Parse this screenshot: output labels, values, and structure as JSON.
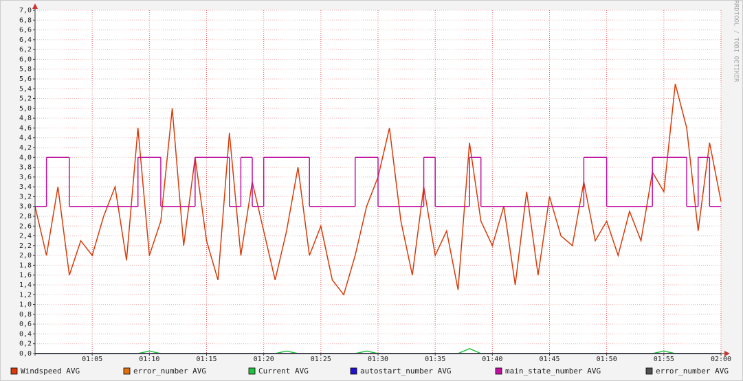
{
  "chart_data": {
    "type": "line",
    "watermark": "RRDTOOL / TOBI OETIKER",
    "grid": true,
    "xlim": [
      60,
      120
    ],
    "xticks": [
      {
        "value": 65,
        "label": "01:05"
      },
      {
        "value": 70,
        "label": "01:10"
      },
      {
        "value": 75,
        "label": "01:15"
      },
      {
        "value": 80,
        "label": "01:20"
      },
      {
        "value": 85,
        "label": "01:25"
      },
      {
        "value": 90,
        "label": "01:30"
      },
      {
        "value": 95,
        "label": "01:35"
      },
      {
        "value": 100,
        "label": "01:40"
      },
      {
        "value": 105,
        "label": "01:45"
      },
      {
        "value": 110,
        "label": "01:50"
      },
      {
        "value": 115,
        "label": "01:55"
      },
      {
        "value": 120,
        "label": "02:00"
      }
    ],
    "ylim": [
      0,
      7
    ],
    "yticks": [
      {
        "value": 0,
        "label": "0,0"
      },
      {
        "value": 0.2,
        "label": "0,2"
      },
      {
        "value": 0.4,
        "label": "0,4"
      },
      {
        "value": 0.6,
        "label": "0,6"
      },
      {
        "value": 0.8,
        "label": "0,8"
      },
      {
        "value": 1,
        "label": "1,0"
      },
      {
        "value": 1.2,
        "label": "1,2"
      },
      {
        "value": 1.4,
        "label": "1,4"
      },
      {
        "value": 1.6,
        "label": "1,6"
      },
      {
        "value": 1.8,
        "label": "1,8"
      },
      {
        "value": 2,
        "label": "2,0"
      },
      {
        "value": 2.2,
        "label": "2,2"
      },
      {
        "value": 2.4,
        "label": "2,4"
      },
      {
        "value": 2.6,
        "label": "2,6"
      },
      {
        "value": 2.8,
        "label": "2,8"
      },
      {
        "value": 3,
        "label": "3,0"
      },
      {
        "value": 3.2,
        "label": "3,2"
      },
      {
        "value": 3.4,
        "label": "3,4"
      },
      {
        "value": 3.6,
        "label": "3,6"
      },
      {
        "value": 3.8,
        "label": "3,8"
      },
      {
        "value": 4,
        "label": "4,0"
      },
      {
        "value": 4.2,
        "label": "4,2"
      },
      {
        "value": 4.4,
        "label": "4,4"
      },
      {
        "value": 4.6,
        "label": "4,6"
      },
      {
        "value": 4.8,
        "label": "4,8"
      },
      {
        "value": 5,
        "label": "5,0"
      },
      {
        "value": 5.2,
        "label": "5,2"
      },
      {
        "value": 5.4,
        "label": "5,4"
      },
      {
        "value": 5.6,
        "label": "5,6"
      },
      {
        "value": 5.8,
        "label": "5,8"
      },
      {
        "value": 6,
        "label": "6,0"
      },
      {
        "value": 6.2,
        "label": "6,2"
      },
      {
        "value": 6.4,
        "label": "6,4"
      },
      {
        "value": 6.6,
        "label": "6,6"
      },
      {
        "value": 6.8,
        "label": "6,8"
      },
      {
        "value": 7,
        "label": "7,0"
      }
    ],
    "x": [
      60,
      61,
      62,
      63,
      64,
      65,
      66,
      67,
      68,
      69,
      70,
      71,
      72,
      73,
      74,
      75,
      76,
      77,
      78,
      79,
      80,
      81,
      82,
      83,
      84,
      85,
      86,
      87,
      88,
      89,
      90,
      91,
      92,
      93,
      94,
      95,
      96,
      97,
      98,
      99,
      100,
      101,
      102,
      103,
      104,
      105,
      106,
      107,
      108,
      109,
      110,
      111,
      112,
      113,
      114,
      115,
      116,
      117,
      118,
      119,
      120
    ],
    "series": [
      {
        "name": "Windspeed AVG",
        "color": "#d83a08",
        "values": [
          3.0,
          2.0,
          3.4,
          1.6,
          2.3,
          2.0,
          2.8,
          3.4,
          1.9,
          4.6,
          2.0,
          2.7,
          5.0,
          2.2,
          4.0,
          2.3,
          1.5,
          4.5,
          2.0,
          3.5,
          2.5,
          1.5,
          2.5,
          3.8,
          2.0,
          2.6,
          1.5,
          1.2,
          2.0,
          3.0,
          3.6,
          4.6,
          2.7,
          1.6,
          3.4,
          2.0,
          2.5,
          1.3,
          4.3,
          2.7,
          2.2,
          3.0,
          1.4,
          3.3,
          1.6,
          3.2,
          2.4,
          2.2,
          3.5,
          2.3,
          2.7,
          2.0,
          2.9,
          2.3,
          3.7,
          3.3,
          5.5,
          4.6,
          2.5,
          4.3,
          3.1
        ]
      },
      {
        "name": "error_number AVG",
        "color": "#e07010",
        "values": [
          0,
          0,
          0,
          0,
          0,
          0,
          0,
          0,
          0,
          0,
          0,
          0,
          0,
          0,
          0,
          0,
          0,
          0,
          0,
          0,
          0,
          0,
          0,
          0,
          0,
          0,
          0,
          0,
          0,
          0,
          0,
          0,
          0,
          0,
          0,
          0,
          0,
          0,
          0,
          0,
          0,
          0,
          0,
          0,
          0,
          0,
          0,
          0,
          0,
          0,
          0,
          0,
          0,
          0,
          0,
          0,
          0,
          0,
          0,
          0,
          0
        ]
      },
      {
        "name": "Current AVG",
        "color": "#20c040",
        "values": [
          0,
          0,
          0,
          0,
          0,
          0,
          0,
          0,
          0,
          0,
          0.05,
          0,
          0,
          0,
          0,
          0,
          0,
          0,
          0,
          0,
          0,
          0,
          0.05,
          0,
          0,
          0,
          0,
          0,
          0,
          0.05,
          0,
          0,
          0,
          0,
          0,
          0,
          0,
          0,
          0.1,
          0,
          0,
          0,
          0,
          0,
          0,
          0,
          0,
          0,
          0,
          0,
          0,
          0,
          0,
          0,
          0,
          0.05,
          0,
          0,
          0,
          0,
          0
        ]
      },
      {
        "name": "autostart_number AVG",
        "color": "#2010d0",
        "values": [
          0,
          0,
          0,
          0,
          0,
          0,
          0,
          0,
          0,
          0,
          0,
          0,
          0,
          0,
          0,
          0,
          0,
          0,
          0,
          0,
          0,
          0,
          0,
          0,
          0,
          0,
          0,
          0,
          0,
          0,
          0,
          0,
          0,
          0,
          0,
          0,
          0,
          0,
          0,
          0,
          0,
          0,
          0,
          0,
          0,
          0,
          0,
          0,
          0,
          0,
          0,
          0,
          0,
          0,
          0,
          0,
          0,
          0,
          0,
          0,
          0
        ]
      },
      {
        "name": "main_state_number AVG",
        "color": "#c010a0",
        "step": true,
        "values": [
          3,
          4,
          4,
          3,
          3,
          3,
          3,
          3,
          3,
          4,
          4,
          3,
          3,
          3,
          4,
          4,
          4,
          3,
          4,
          3,
          4,
          4,
          4,
          4,
          3,
          3,
          3,
          3,
          4,
          4,
          3,
          3,
          3,
          3,
          4,
          3,
          3,
          3,
          4,
          3,
          3,
          3,
          3,
          3,
          3,
          3,
          3,
          3,
          4,
          4,
          3,
          3,
          3,
          3,
          4,
          4,
          4,
          3,
          4,
          3,
          3
        ]
      },
      {
        "name": "error_number AVG",
        "color": "#505050",
        "values": [
          0,
          0,
          0,
          0,
          0,
          0,
          0,
          0,
          0,
          0,
          0,
          0,
          0,
          0,
          0,
          0,
          0,
          0,
          0,
          0,
          0,
          0,
          0,
          0,
          0,
          0,
          0,
          0,
          0,
          0,
          0,
          0,
          0,
          0,
          0,
          0,
          0,
          0,
          0,
          0,
          0,
          0,
          0,
          0,
          0,
          0,
          0,
          0,
          0,
          0,
          0,
          0,
          0,
          0,
          0,
          0,
          0,
          0,
          0,
          0,
          0
        ]
      }
    ]
  }
}
